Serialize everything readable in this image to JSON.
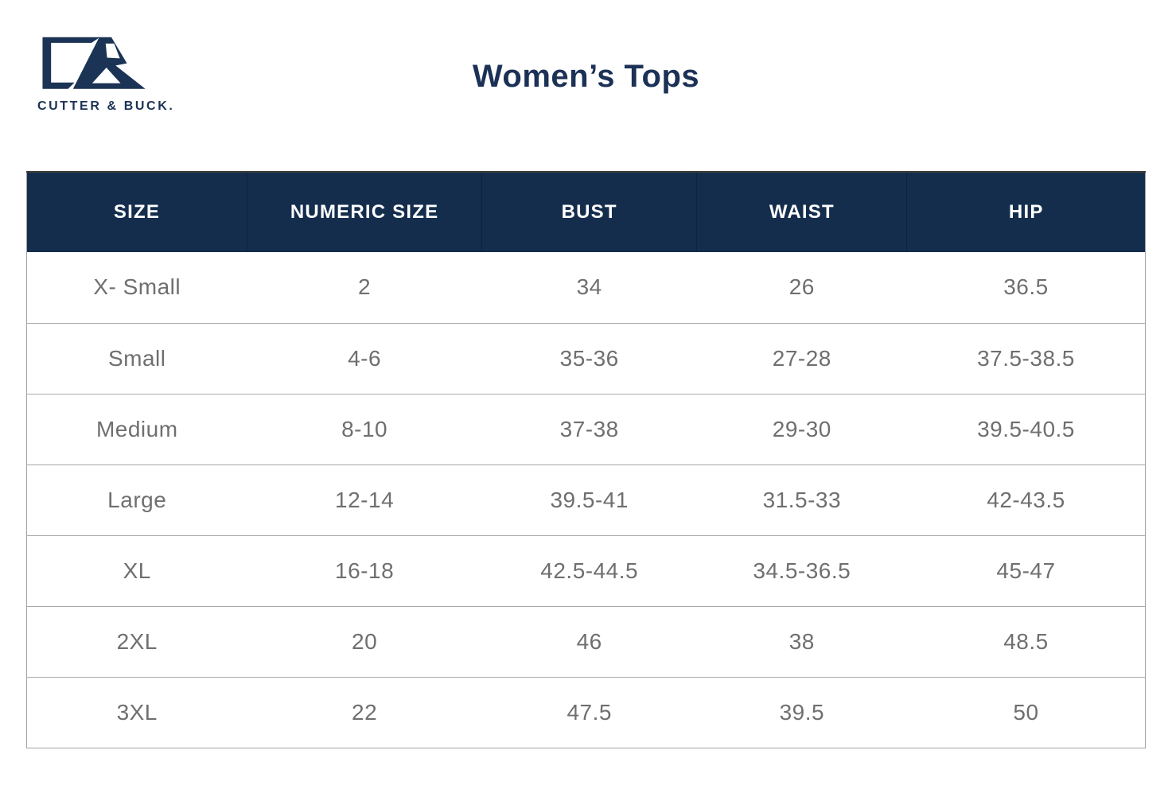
{
  "brand": {
    "wordmark": "CUTTER & BUCK.",
    "logo_icon": "cutter-buck-cb-monogram"
  },
  "title": "Women’s Tops",
  "table": {
    "headers": [
      "SIZE",
      "NUMERIC SIZE",
      "BUST",
      "WAIST",
      "HIP"
    ],
    "rows": [
      [
        "X- Small",
        "2",
        "34",
        "26",
        "36.5"
      ],
      [
        "Small",
        "4-6",
        "35-36",
        "27-28",
        "37.5-38.5"
      ],
      [
        "Medium",
        "8-10",
        "37-38",
        "29-30",
        "39.5-40.5"
      ],
      [
        "Large",
        "12-14",
        "39.5-41",
        "31.5-33",
        "42-43.5"
      ],
      [
        "XL",
        "16-18",
        "42.5-44.5",
        "34.5-36.5",
        "45-47"
      ],
      [
        "2XL",
        "20",
        "46",
        "38",
        "48.5"
      ],
      [
        "3XL",
        "22",
        "47.5",
        "39.5",
        "50"
      ]
    ]
  },
  "chart_data": {
    "type": "table",
    "title": "Women's Tops",
    "columns": [
      "SIZE",
      "NUMERIC SIZE",
      "BUST",
      "WAIST",
      "HIP"
    ],
    "rows": [
      {
        "size": "X- Small",
        "numeric_size": "2",
        "bust": "34",
        "waist": "26",
        "hip": "36.5"
      },
      {
        "size": "Small",
        "numeric_size": "4-6",
        "bust": "35-36",
        "waist": "27-28",
        "hip": "37.5-38.5"
      },
      {
        "size": "Medium",
        "numeric_size": "8-10",
        "bust": "37-38",
        "waist": "29-30",
        "hip": "39.5-40.5"
      },
      {
        "size": "Large",
        "numeric_size": "12-14",
        "bust": "39.5-41",
        "waist": "31.5-33",
        "hip": "42-43.5"
      },
      {
        "size": "XL",
        "numeric_size": "16-18",
        "bust": "42.5-44.5",
        "waist": "34.5-36.5",
        "hip": "45-47"
      },
      {
        "size": "2XL",
        "numeric_size": "20",
        "bust": "46",
        "waist": "38",
        "hip": "48.5"
      },
      {
        "size": "3XL",
        "numeric_size": "22",
        "bust": "47.5",
        "waist": "39.5",
        "hip": "50"
      }
    ]
  },
  "colors": {
    "header_background": "#142d4d",
    "brand_navy": "#1b3355",
    "title_navy": "#1c3156",
    "body_text": "#6f6f6f",
    "row_divider": "#a9a9a9",
    "outer_border": "#a3a3a3",
    "header_top_line": "#3f3e35",
    "header_text": "#ffffff"
  }
}
